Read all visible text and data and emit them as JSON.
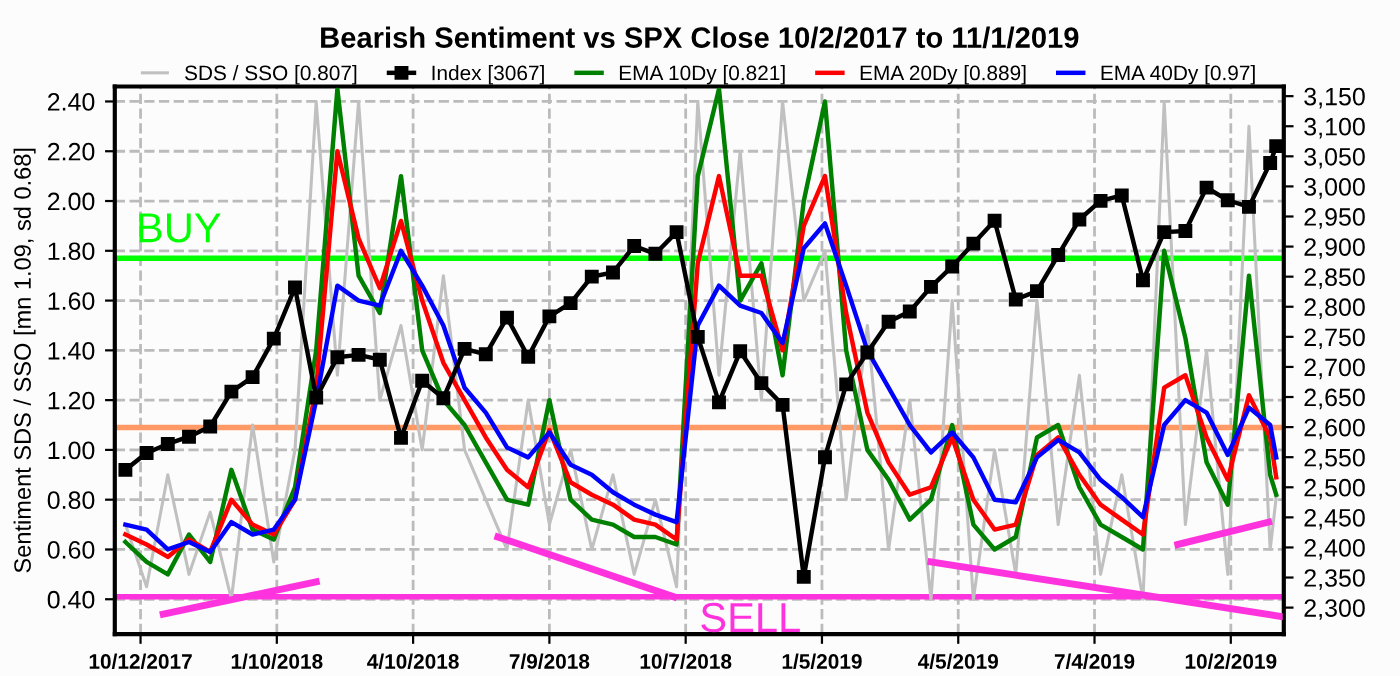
{
  "chart_data": {
    "type": "line",
    "title": "Bearish Sentiment vs SPX Close 10/2/2017 to 11/1/2019",
    "ylabel": "Sentiment SDS / SSO [mn 1.09, sd 0.68]",
    "x": [
      "2017-10-02",
      "2017-10-16",
      "2017-10-30",
      "2017-11-13",
      "2017-11-27",
      "2017-12-11",
      "2017-12-25",
      "2018-01-08",
      "2018-01-22",
      "2018-02-05",
      "2018-02-19",
      "2018-03-05",
      "2018-03-19",
      "2018-04-02",
      "2018-04-16",
      "2018-04-30",
      "2018-05-14",
      "2018-05-28",
      "2018-06-11",
      "2018-06-25",
      "2018-07-09",
      "2018-07-23",
      "2018-08-06",
      "2018-08-20",
      "2018-09-03",
      "2018-09-17",
      "2018-10-01",
      "2018-10-15",
      "2018-10-29",
      "2018-11-12",
      "2018-11-26",
      "2018-12-10",
      "2018-12-24",
      "2019-01-07",
      "2019-01-21",
      "2019-02-04",
      "2019-02-18",
      "2019-03-04",
      "2019-03-18",
      "2019-04-01",
      "2019-04-15",
      "2019-04-29",
      "2019-05-13",
      "2019-05-27",
      "2019-06-10",
      "2019-06-24",
      "2019-07-08",
      "2019-07-22",
      "2019-08-05",
      "2019-08-19",
      "2019-09-02",
      "2019-09-16",
      "2019-09-30",
      "2019-10-14",
      "2019-10-28",
      "2019-11-01"
    ],
    "series": [
      {
        "name": "SDS / SSO [0.807]",
        "color": "#c0c0c0",
        "values": [
          0.7,
          0.45,
          0.9,
          0.5,
          0.75,
          0.4,
          1.1,
          0.55,
          1.0,
          2.4,
          1.3,
          2.4,
          1.2,
          1.5,
          1.0,
          1.7,
          1.0,
          0.8,
          0.6,
          1.2,
          0.7,
          1.0,
          0.6,
          0.9,
          0.5,
          0.8,
          0.45,
          2.4,
          1.3,
          2.2,
          1.2,
          2.4,
          1.6,
          1.8,
          0.8,
          1.5,
          0.6,
          1.2,
          0.4,
          1.6,
          0.4,
          1.0,
          0.5,
          1.6,
          0.7,
          1.3,
          0.5,
          0.9,
          0.4,
          2.4,
          0.7,
          1.4,
          0.5,
          2.3,
          0.6,
          0.81
        ]
      },
      {
        "name": "Index [3067]",
        "color": "#000000",
        "axis": "y2",
        "marker": "square",
        "values": [
          2529,
          2557,
          2572,
          2584,
          2601,
          2659,
          2683,
          2747,
          2832,
          2649,
          2716,
          2720,
          2712,
          2582,
          2677,
          2648,
          2730,
          2721,
          2782,
          2717,
          2784,
          2806,
          2850,
          2857,
          2901,
          2888,
          2924,
          2750,
          2641,
          2726,
          2673,
          2637,
          2351,
          2550,
          2671,
          2724,
          2775,
          2792,
          2833,
          2867,
          2905,
          2943,
          2812,
          2826,
          2886,
          2945,
          2976,
          2985,
          2844,
          2924,
          2926,
          2998,
          2977,
          2966,
          3039,
          3067
        ]
      },
      {
        "name": "EMA 10Dy [0.821]",
        "color": "#008000",
        "values": [
          0.63,
          0.55,
          0.5,
          0.66,
          0.55,
          0.92,
          0.68,
          0.64,
          0.85,
          1.4,
          2.45,
          1.7,
          1.55,
          2.1,
          1.4,
          1.2,
          1.1,
          0.95,
          0.8,
          0.78,
          1.2,
          0.8,
          0.72,
          0.7,
          0.65,
          0.65,
          0.62,
          2.1,
          2.45,
          1.6,
          1.75,
          1.3,
          2.0,
          2.4,
          1.4,
          1.0,
          0.88,
          0.72,
          0.8,
          1.1,
          0.7,
          0.6,
          0.65,
          1.05,
          1.1,
          0.85,
          0.7,
          0.65,
          0.6,
          1.8,
          1.45,
          0.95,
          0.78,
          1.7,
          0.9,
          0.82
        ]
      },
      {
        "name": "EMA 20Dy [0.889]",
        "color": "#ff0000",
        "values": [
          0.66,
          0.62,
          0.57,
          0.64,
          0.59,
          0.8,
          0.7,
          0.66,
          0.8,
          1.25,
          2.2,
          1.85,
          1.65,
          1.92,
          1.6,
          1.35,
          1.2,
          1.05,
          0.92,
          0.85,
          1.08,
          0.87,
          0.82,
          0.78,
          0.72,
          0.7,
          0.64,
          1.75,
          2.1,
          1.7,
          1.7,
          1.4,
          1.9,
          2.1,
          1.55,
          1.15,
          0.95,
          0.82,
          0.85,
          1.05,
          0.8,
          0.68,
          0.7,
          0.98,
          1.05,
          0.9,
          0.78,
          0.72,
          0.66,
          1.25,
          1.3,
          1.05,
          0.88,
          1.22,
          1.05,
          0.89
        ]
      },
      {
        "name": "EMA 40Dy [0.97]",
        "color": "#0000ff",
        "values": [
          0.7,
          0.68,
          0.6,
          0.63,
          0.59,
          0.71,
          0.66,
          0.68,
          0.8,
          1.2,
          1.66,
          1.6,
          1.58,
          1.8,
          1.66,
          1.5,
          1.25,
          1.15,
          1.01,
          0.97,
          1.07,
          0.94,
          0.9,
          0.83,
          0.78,
          0.74,
          0.71,
          1.5,
          1.66,
          1.58,
          1.55,
          1.43,
          1.81,
          1.91,
          1.66,
          1.4,
          1.25,
          1.1,
          0.99,
          1.07,
          0.97,
          0.8,
          0.79,
          0.97,
          1.04,
          0.99,
          0.88,
          0.81,
          0.73,
          1.1,
          1.2,
          1.15,
          0.98,
          1.17,
          1.1,
          0.97
        ]
      },
      {
        "color": "#ff33dd",
        "x": [
          "2017-10-27",
          "2018-02-05"
        ],
        "values": [
          0.34,
          0.47
        ]
      },
      {
        "color": "#ff33dd",
        "x": [
          "2018-06-05",
          "2018-09-29"
        ],
        "values": [
          0.65,
          0.41
        ]
      },
      {
        "color": "#ff33dd",
        "x": [
          "2019-03-18",
          "2019-11-05"
        ],
        "values": [
          0.55,
          0.33
        ]
      },
      {
        "color": "#ff33dd",
        "x": [
          "2019-08-28",
          "2019-10-27"
        ],
        "values": [
          0.62,
          0.71
        ]
      }
    ],
    "ref_lines": [
      {
        "axis": "y",
        "value": 1.77,
        "label": "BUY",
        "color": "#00ff00"
      },
      {
        "axis": "y",
        "value": 1.09,
        "color": "#ff9966"
      },
      {
        "axis": "y",
        "value": 0.41,
        "label": "SELL",
        "color": "#ff33dd"
      }
    ],
    "xlim": [
      "2017-09-25",
      "2019-11-06"
    ],
    "xticks": [
      {
        "value": "2017-10-12",
        "label": "10/12/2017"
      },
      {
        "value": "2018-01-10",
        "label": "1/10/2018"
      },
      {
        "value": "2018-04-10",
        "label": "4/10/2018"
      },
      {
        "value": "2018-07-09",
        "label": "7/9/2018"
      },
      {
        "value": "2018-10-07",
        "label": "10/7/2018"
      },
      {
        "value": "2019-01-05",
        "label": "1/5/2019"
      },
      {
        "value": "2019-04-05",
        "label": "4/5/2019"
      },
      {
        "value": "2019-07-04",
        "label": "7/4/2019"
      },
      {
        "value": "2019-10-02",
        "label": "10/2/2019"
      }
    ],
    "ylim": [
      0.26,
      2.46
    ],
    "yticks": [
      {
        "value": 0.4,
        "label": "0.40"
      },
      {
        "value": 0.6,
        "label": "0.60"
      },
      {
        "value": 0.8,
        "label": "0.80"
      },
      {
        "value": 1.0,
        "label": "1.00"
      },
      {
        "value": 1.2,
        "label": "1.20"
      },
      {
        "value": 1.4,
        "label": "1.40"
      },
      {
        "value": 1.6,
        "label": "1.60"
      },
      {
        "value": 1.8,
        "label": "1.80"
      },
      {
        "value": 2.0,
        "label": "2.00"
      },
      {
        "value": 2.2,
        "label": "2.20"
      },
      {
        "value": 2.4,
        "label": "2.40"
      }
    ],
    "y2lim": [
      2256,
      3166
    ],
    "y2ticks": [
      {
        "value": 2300,
        "label": "2,300"
      },
      {
        "value": 2350,
        "label": "2,350"
      },
      {
        "value": 2400,
        "label": "2,400"
      },
      {
        "value": 2450,
        "label": "2,450"
      },
      {
        "value": 2500,
        "label": "2,500"
      },
      {
        "value": 2550,
        "label": "2,550"
      },
      {
        "value": 2600,
        "label": "2,600"
      },
      {
        "value": 2650,
        "label": "2,650"
      },
      {
        "value": 2700,
        "label": "2,700"
      },
      {
        "value": 2750,
        "label": "2,750"
      },
      {
        "value": 2800,
        "label": "2,800"
      },
      {
        "value": 2850,
        "label": "2,850"
      },
      {
        "value": 2900,
        "label": "2,900"
      },
      {
        "value": 2950,
        "label": "2,950"
      },
      {
        "value": 3000,
        "label": "3,000"
      },
      {
        "value": 3050,
        "label": "3,050"
      },
      {
        "value": 3100,
        "label": "3,100"
      },
      {
        "value": 3150,
        "label": "3,150"
      }
    ],
    "grid": true,
    "legend": "top",
    "line_style": "solid"
  }
}
